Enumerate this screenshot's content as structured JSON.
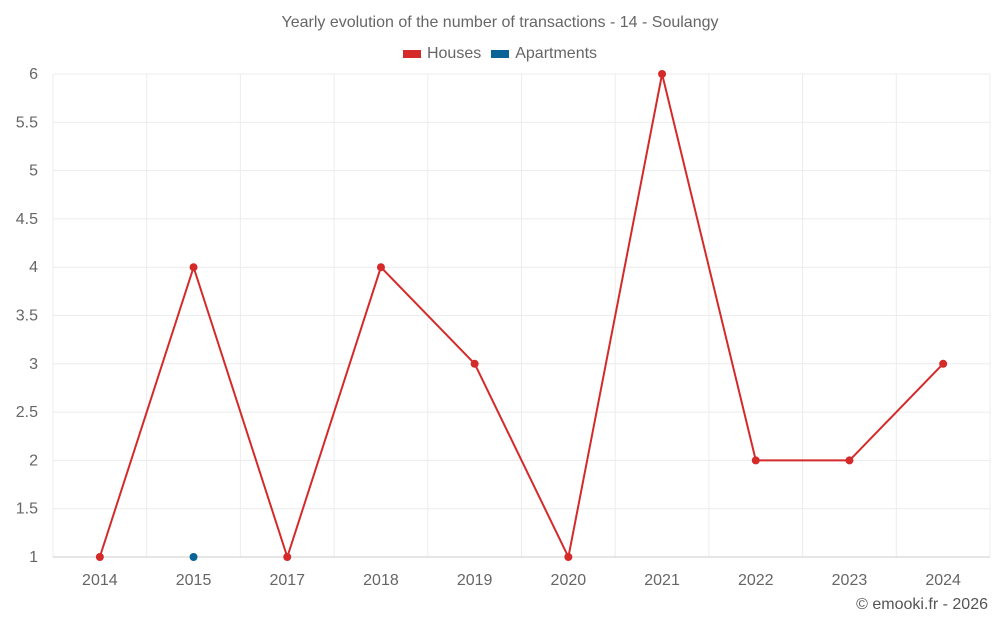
{
  "chart_data": {
    "type": "line",
    "title": "Yearly evolution of the number of transactions - 14 - Soulangy",
    "categories": [
      "2014",
      "2015",
      "2017",
      "2018",
      "2019",
      "2020",
      "2021",
      "2022",
      "2023",
      "2024"
    ],
    "yticks": [
      "1",
      "1.5",
      "2",
      "2.5",
      "3",
      "3.5",
      "4",
      "4.5",
      "5",
      "5.5",
      "6"
    ],
    "ylim": [
      1,
      6
    ],
    "series": [
      {
        "name": "Houses",
        "color": "#d42a2a",
        "values": [
          1,
          4,
          1,
          4,
          3,
          1,
          6,
          2,
          2,
          3
        ]
      },
      {
        "name": "Apartments",
        "color": "#0a6496",
        "values": [
          null,
          1,
          null,
          null,
          null,
          null,
          null,
          null,
          null,
          null
        ]
      }
    ],
    "legend_position": "top-center",
    "grid": true
  },
  "credit": "© emooki.fr - 2026"
}
